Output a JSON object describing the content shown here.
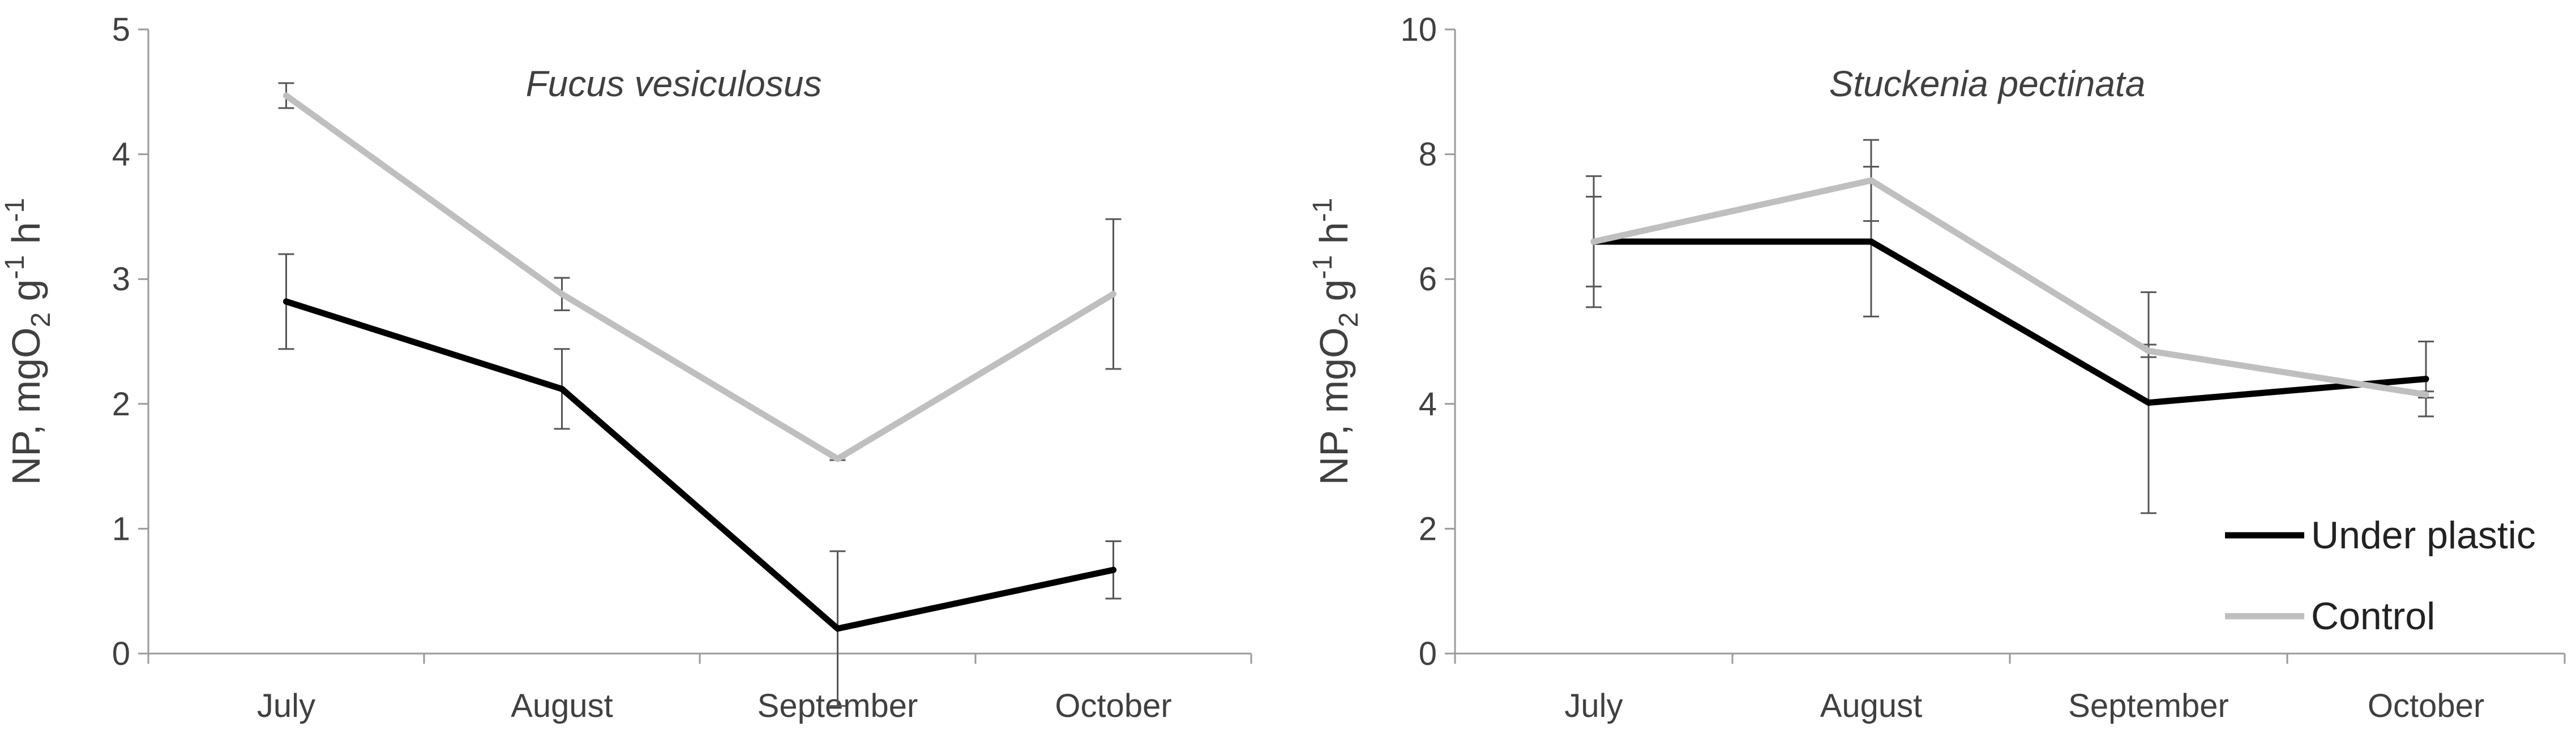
{
  "chart_data": [
    {
      "type": "line",
      "title": "Fucus vesiculosus",
      "ylabel_parts": [
        "NP, mgO",
        "2",
        " g",
        "-1",
        " h",
        "-1"
      ],
      "categories": [
        "July",
        "August",
        "September",
        "October"
      ],
      "ylim": [
        0,
        5
      ],
      "yticks": [
        0,
        1,
        2,
        3,
        4,
        5
      ],
      "series": [
        {
          "name": "Under plastic",
          "color": "#000000",
          "values": [
            2.82,
            2.12,
            0.2,
            0.67
          ],
          "errors": [
            0.38,
            0.32,
            0.62,
            0.23
          ]
        },
        {
          "name": "Control",
          "color": "#bfbfbf",
          "values": [
            4.47,
            2.88,
            1.56,
            2.88
          ],
          "errors": [
            0.1,
            0.13,
            0.01,
            0.6
          ]
        }
      ],
      "legend": false
    },
    {
      "type": "line",
      "title": "Stuckenia pectinata",
      "ylabel_parts": [
        "NP, mgO",
        "2",
        " g",
        "-1",
        " h",
        "-1"
      ],
      "categories": [
        "July",
        "August",
        "September",
        "October"
      ],
      "ylim": [
        0,
        10
      ],
      "yticks": [
        0,
        2,
        4,
        6,
        8,
        10
      ],
      "series": [
        {
          "name": "Under plastic",
          "color": "#000000",
          "values": [
            6.6,
            6.6,
            4.02,
            4.4
          ],
          "errors": [
            0.72,
            1.2,
            1.77,
            0.6
          ]
        },
        {
          "name": "Control",
          "color": "#bfbfbf",
          "values": [
            6.6,
            7.58,
            4.85,
            4.15
          ],
          "errors": [
            1.05,
            0.65,
            0.1,
            0.05
          ]
        }
      ],
      "legend": true,
      "legend_position": "bottom-right"
    }
  ]
}
